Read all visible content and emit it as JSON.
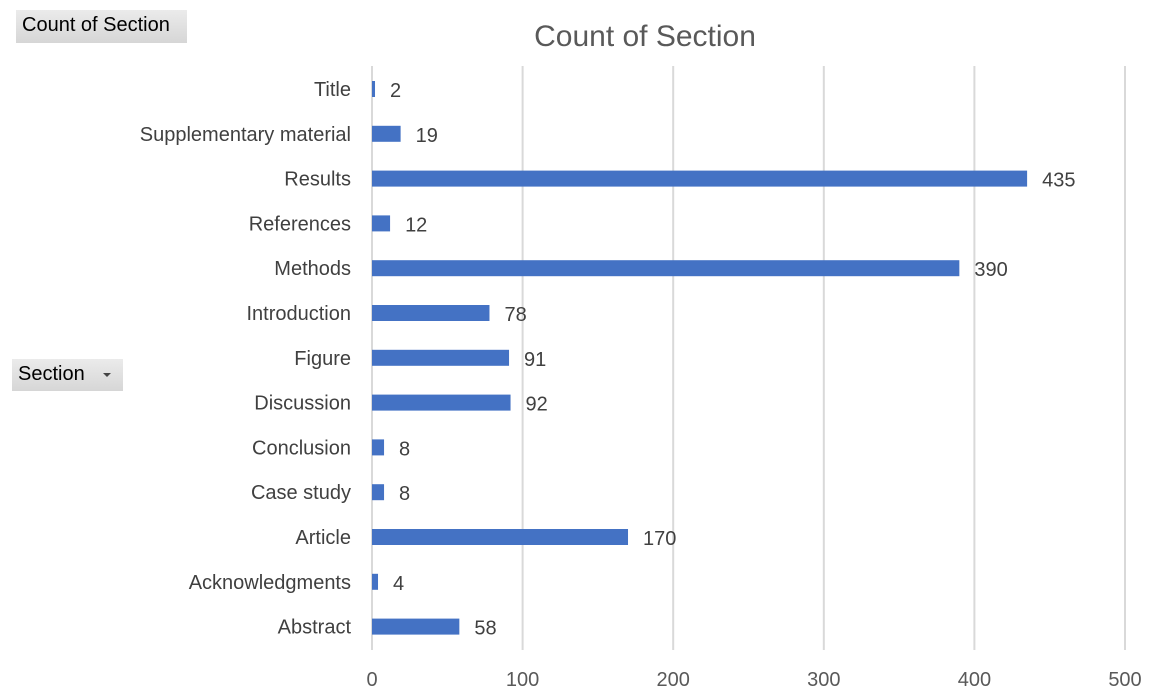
{
  "pivot": {
    "value_field": "Count of Section",
    "row_field": "Section"
  },
  "colors": {
    "bar": "#4472c4",
    "grid": "#d9d9d9",
    "button_bg": "#dcdcdc"
  },
  "chart_data": {
    "type": "bar",
    "orientation": "horizontal",
    "title": "Count of Section",
    "xlabel": "",
    "ylabel": "",
    "categories": [
      "Title",
      "Supplementary material",
      "Results",
      "References",
      "Methods",
      "Introduction",
      "Figure",
      "Discussion",
      "Conclusion",
      "Case study",
      "Article",
      "Acknowledgments",
      "Abstract"
    ],
    "values": [
      2,
      19,
      435,
      12,
      390,
      78,
      91,
      92,
      8,
      8,
      170,
      4,
      58
    ],
    "xlim": [
      0,
      500
    ],
    "xticks": [
      0,
      100,
      200,
      300,
      400,
      500
    ],
    "grid": true,
    "legend": "none",
    "data_labels": true
  }
}
